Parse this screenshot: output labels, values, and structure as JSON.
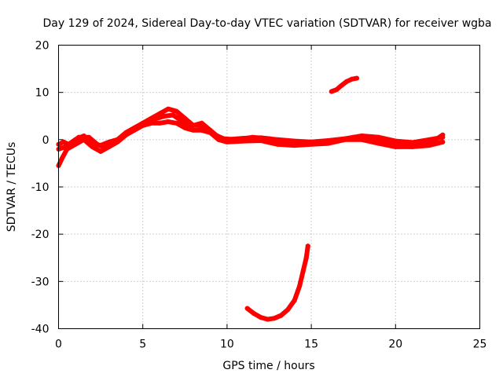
{
  "chart_data": {
    "type": "scatter",
    "title": "Day 129 of 2024, Sidereal Day-to-day VTEC variation (SDTVAR) for receiver wgba",
    "xlabel": "GPS time / hours",
    "ylabel": "SDTVAR / TECUs",
    "xlim": [
      0,
      25
    ],
    "ylim": [
      -40,
      20
    ],
    "xticks": [
      0,
      5,
      10,
      15,
      20,
      25
    ],
    "yticks": [
      -40,
      -30,
      -20,
      -10,
      0,
      10,
      20
    ],
    "grid": true,
    "color": "#ff0000",
    "series": [
      {
        "name": "main-band-upper",
        "points": [
          [
            0,
            -1
          ],
          [
            0.3,
            -0.5
          ],
          [
            0.6,
            -1
          ],
          [
            1,
            0
          ],
          [
            1.5,
            0.8
          ],
          [
            2,
            -0.8
          ],
          [
            2.5,
            -1.2
          ],
          [
            3,
            -0.5
          ],
          [
            3.5,
            0
          ],
          [
            4,
            1.5
          ],
          [
            4.5,
            2.5
          ],
          [
            5,
            3.5
          ],
          [
            5.5,
            4.5
          ],
          [
            6,
            5.5
          ],
          [
            6.5,
            6.5
          ],
          [
            7,
            6
          ],
          [
            7.5,
            4.5
          ],
          [
            8,
            3
          ],
          [
            8.5,
            3.5
          ],
          [
            9,
            2
          ],
          [
            9.5,
            0.5
          ],
          [
            10,
            0
          ],
          [
            11,
            0.3
          ],
          [
            12,
            0.4
          ],
          [
            13,
            0
          ],
          [
            14,
            -0.3
          ],
          [
            15,
            -0.5
          ],
          [
            16,
            -0.2
          ],
          [
            17,
            0.2
          ],
          [
            18,
            0.8
          ],
          [
            19,
            0.5
          ],
          [
            20,
            -0.3
          ],
          [
            21,
            -0.6
          ],
          [
            22,
            0
          ],
          [
            22.8,
            0.5
          ]
        ]
      },
      {
        "name": "main-band-lower",
        "points": [
          [
            0,
            -5.5
          ],
          [
            0.2,
            -4
          ],
          [
            0.5,
            -2
          ],
          [
            1,
            -1
          ],
          [
            1.5,
            0
          ],
          [
            2,
            -1.5
          ],
          [
            2.5,
            -2.5
          ],
          [
            3,
            -1.5
          ],
          [
            3.5,
            -0.5
          ],
          [
            4,
            1
          ],
          [
            4.5,
            2
          ],
          [
            5,
            3
          ],
          [
            5.5,
            3.5
          ],
          [
            6,
            3.5
          ],
          [
            6.5,
            3.8
          ],
          [
            7,
            3.5
          ],
          [
            7.5,
            2.5
          ],
          [
            8,
            2
          ],
          [
            8.5,
            2
          ],
          [
            9,
            1.5
          ],
          [
            9.5,
            0
          ],
          [
            10,
            -0.5
          ],
          [
            11,
            -0.3
          ],
          [
            12,
            -0.2
          ],
          [
            13,
            -1
          ],
          [
            14,
            -1.2
          ],
          [
            15,
            -1
          ],
          [
            16,
            -0.8
          ],
          [
            17,
            0
          ],
          [
            18,
            0
          ],
          [
            19,
            -0.8
          ],
          [
            20,
            -1.5
          ],
          [
            21,
            -1.5
          ],
          [
            22,
            -1.2
          ],
          [
            22.8,
            -0.5
          ]
        ]
      },
      {
        "name": "main-band-mid",
        "points": [
          [
            0,
            -2
          ],
          [
            0.4,
            -1.5
          ],
          [
            0.8,
            -0.5
          ],
          [
            1.2,
            0.5
          ],
          [
            1.8,
            0.5
          ],
          [
            2.3,
            -1
          ],
          [
            2.8,
            -1.8
          ],
          [
            3.3,
            -0.8
          ],
          [
            3.8,
            0.5
          ],
          [
            4.3,
            1.8
          ],
          [
            4.8,
            3
          ],
          [
            5.3,
            4
          ],
          [
            5.8,
            4.5
          ],
          [
            6.3,
            5
          ],
          [
            6.8,
            5.2
          ],
          [
            7.3,
            4
          ],
          [
            7.8,
            3
          ],
          [
            8.3,
            3
          ],
          [
            8.8,
            2.5
          ],
          [
            9.3,
            1
          ],
          [
            9.8,
            0.2
          ],
          [
            10.5,
            0
          ],
          [
            11.5,
            0.5
          ],
          [
            12.5,
            0.2
          ],
          [
            13.5,
            -0.6
          ],
          [
            14.5,
            -0.8
          ],
          [
            15.5,
            -0.5
          ],
          [
            16.5,
            -0.3
          ],
          [
            17.5,
            0.5
          ],
          [
            18.5,
            0.5
          ],
          [
            19.5,
            -0.5
          ],
          [
            20.5,
            -1
          ],
          [
            21.5,
            -0.8
          ],
          [
            22.3,
            -0.2
          ],
          [
            22.8,
            1
          ]
        ]
      },
      {
        "name": "upper-arc",
        "points": [
          [
            16.2,
            10.2
          ],
          [
            16.5,
            10.6
          ],
          [
            16.8,
            11.5
          ],
          [
            17.1,
            12.3
          ],
          [
            17.4,
            12.8
          ],
          [
            17.7,
            13
          ]
        ]
      },
      {
        "name": "lower-arc",
        "points": [
          [
            11.2,
            -35.7
          ],
          [
            11.6,
            -36.8
          ],
          [
            12,
            -37.6
          ],
          [
            12.4,
            -38
          ],
          [
            12.8,
            -37.8
          ],
          [
            13.2,
            -37.2
          ],
          [
            13.6,
            -36
          ],
          [
            14,
            -34
          ],
          [
            14.3,
            -31
          ],
          [
            14.5,
            -28
          ],
          [
            14.7,
            -25
          ],
          [
            14.8,
            -22.5
          ]
        ]
      }
    ]
  }
}
